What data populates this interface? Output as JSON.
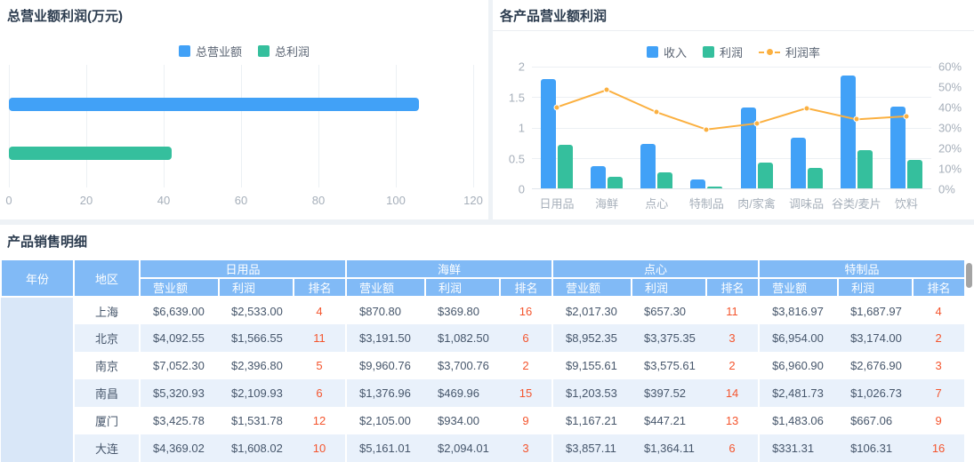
{
  "colors": {
    "blue": "#41A1F7",
    "green": "#35BF9D",
    "orange": "#FBB040",
    "rank_red": "#F4552E",
    "header_bg": "#81BAF6",
    "year_col_bg": "#D9E7F8",
    "row_alt_bg": "#E9F1FB"
  },
  "left_card": {
    "title": "总营业额利润(万元)"
  },
  "right_card": {
    "title": "各产品营业额利润"
  },
  "table": {
    "title": "产品销售明细",
    "year_header": "年份",
    "region_header": "地区",
    "groups": [
      "日用品",
      "海鲜",
      "点心",
      "特制品"
    ],
    "sub_headers": [
      "营业额",
      "利润",
      "排名"
    ],
    "rows": [
      {
        "region": "上海",
        "cells": [
          [
            "$6,639.00",
            "$2,533.00",
            "4"
          ],
          [
            "$870.80",
            "$369.80",
            "16"
          ],
          [
            "$2,017.30",
            "$657.30",
            "11"
          ],
          [
            "$3,816.97",
            "$1,687.97",
            "4"
          ]
        ]
      },
      {
        "region": "北京",
        "cells": [
          [
            "$4,092.55",
            "$1,566.55",
            "11"
          ],
          [
            "$3,191.50",
            "$1,082.50",
            "6"
          ],
          [
            "$8,952.35",
            "$3,375.35",
            "3"
          ],
          [
            "$6,954.00",
            "$3,174.00",
            "2"
          ]
        ]
      },
      {
        "region": "南京",
        "cells": [
          [
            "$7,052.30",
            "$2,396.80",
            "5"
          ],
          [
            "$9,960.76",
            "$3,700.76",
            "2"
          ],
          [
            "$9,155.61",
            "$3,575.61",
            "2"
          ],
          [
            "$6,960.90",
            "$2,676.90",
            "3"
          ]
        ]
      },
      {
        "region": "南昌",
        "cells": [
          [
            "$5,320.93",
            "$2,109.93",
            "6"
          ],
          [
            "$1,376.96",
            "$469.96",
            "15"
          ],
          [
            "$1,203.53",
            "$397.52",
            "14"
          ],
          [
            "$2,481.73",
            "$1,026.73",
            "7"
          ]
        ]
      },
      {
        "region": "厦门",
        "cells": [
          [
            "$3,425.78",
            "$1,531.78",
            "12"
          ],
          [
            "$2,105.00",
            "$934.00",
            "9"
          ],
          [
            "$1,167.21",
            "$447.21",
            "13"
          ],
          [
            "$1,483.06",
            "$667.06",
            "9"
          ]
        ]
      },
      {
        "region": "大连",
        "cells": [
          [
            "$4,369.02",
            "$1,608.02",
            "10"
          ],
          [
            "$5,161.01",
            "$2,094.01",
            "3"
          ],
          [
            "$3,857.11",
            "$1,364.11",
            "6"
          ],
          [
            "$331.31",
            "$106.31",
            "16"
          ]
        ]
      }
    ]
  },
  "chart_data": [
    {
      "type": "bar",
      "orientation": "horizontal",
      "title": "总营业额利润(万元)",
      "legend": [
        "总营业额",
        "总利润"
      ],
      "series": [
        {
          "name": "总营业额",
          "color": "#41A1F7",
          "values": [
            106
          ]
        },
        {
          "name": "总利润",
          "color": "#35BF9D",
          "values": [
            42
          ]
        }
      ],
      "xlabel": "",
      "ylabel": "",
      "xlim": [
        0,
        120
      ],
      "x_ticks": [
        0,
        20,
        40,
        60,
        80,
        100,
        120
      ],
      "grid": true,
      "legend_position": "top"
    },
    {
      "type": "bar",
      "combo": "bar+line",
      "title": "各产品营业额利润",
      "categories": [
        "日用品",
        "海鲜",
        "点心",
        "特制品",
        "肉/家禽",
        "调味品",
        "谷类/麦片",
        "饮料"
      ],
      "series": [
        {
          "name": "收入",
          "kind": "bar",
          "axis": "left",
          "color": "#41A1F7",
          "values": [
            1.8,
            0.37,
            0.73,
            0.15,
            1.33,
            0.83,
            1.85,
            1.35
          ]
        },
        {
          "name": "利润",
          "kind": "bar",
          "axis": "left",
          "color": "#35BF9D",
          "values": [
            0.71,
            0.19,
            0.27,
            0.03,
            0.42,
            0.33,
            0.63,
            0.47
          ]
        },
        {
          "name": "利润率",
          "kind": "line",
          "axis": "right",
          "color": "#FBB040",
          "values_pct": [
            40,
            48.5,
            37.5,
            29,
            32,
            39.5,
            34,
            35.5
          ]
        }
      ],
      "y_left": {
        "min": 0,
        "max": 2,
        "ticks": [
          "2",
          "1.5",
          "1",
          "0.5",
          "0"
        ]
      },
      "y_right": {
        "min": 0,
        "max": 60,
        "ticks": [
          "60%",
          "50%",
          "40%",
          "30%",
          "20%",
          "10%",
          "0%"
        ]
      },
      "grid": true,
      "legend_position": "top"
    }
  ]
}
